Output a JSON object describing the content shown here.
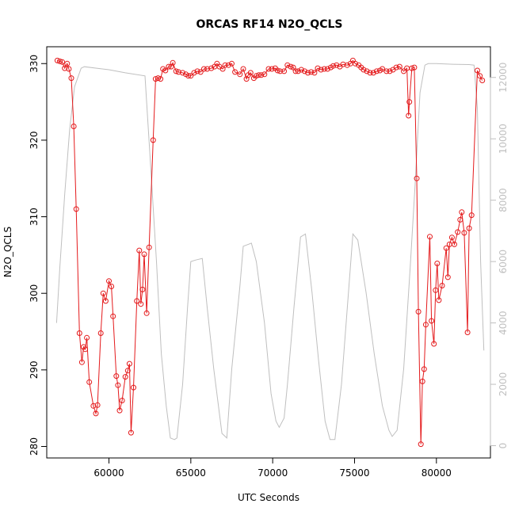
{
  "chart_data": {
    "type": "line",
    "title": "ORCAS RF14 N2O_QCLS",
    "xlabel": "UTC Seconds",
    "ylabel": "N2O_QCLS",
    "xlim": [
      56200,
      83300
    ],
    "ylim": [
      278.5,
      332.2
    ],
    "y2lim": [
      -400,
      13000
    ],
    "x_ticks": [
      60000,
      65000,
      70000,
      75000,
      80000
    ],
    "y_ticks": [
      280,
      290,
      300,
      310,
      320,
      330
    ],
    "y2_ticks": [
      0,
      2000,
      4000,
      6000,
      8000,
      10000,
      12000
    ],
    "colors": {
      "n2o": "#e41a1c",
      "altitude": "#bfbfbf"
    },
    "grid": false,
    "series": [
      {
        "key": "n2o",
        "style": "line+markers",
        "color": "#e41a1c",
        "points": [
          [
            56850,
            330.4
          ],
          [
            57000,
            330.3
          ],
          [
            57150,
            330.2
          ],
          [
            57300,
            329.4
          ],
          [
            57450,
            330.0
          ],
          [
            57550,
            329.3
          ],
          [
            57700,
            328.1
          ],
          [
            57850,
            321.8
          ],
          [
            58000,
            311.0
          ],
          [
            58200,
            294.8
          ],
          [
            58350,
            291.0
          ],
          [
            58450,
            293.0
          ],
          [
            58550,
            292.7
          ],
          [
            58650,
            294.2
          ],
          [
            58800,
            288.4
          ],
          [
            59050,
            285.3
          ],
          [
            59200,
            284.3
          ],
          [
            59300,
            285.4
          ],
          [
            59500,
            294.8
          ],
          [
            59650,
            300.0
          ],
          [
            59800,
            299.0
          ],
          [
            60000,
            301.6
          ],
          [
            60150,
            300.9
          ],
          [
            60250,
            297.0
          ],
          [
            60450,
            289.2
          ],
          [
            60550,
            288.0
          ],
          [
            60650,
            284.7
          ],
          [
            60800,
            286.0
          ],
          [
            61000,
            289.1
          ],
          [
            61150,
            289.9
          ],
          [
            61250,
            290.8
          ],
          [
            61350,
            281.8
          ],
          [
            61500,
            287.7
          ],
          [
            61700,
            299.0
          ],
          [
            61850,
            305.6
          ],
          [
            61950,
            298.6
          ],
          [
            62050,
            300.5
          ],
          [
            62150,
            305.1
          ],
          [
            62300,
            297.4
          ],
          [
            62450,
            306.0
          ],
          [
            62700,
            320.0
          ],
          [
            62850,
            328.0
          ],
          [
            63000,
            328.1
          ],
          [
            63150,
            328.0
          ],
          [
            63300,
            329.3
          ],
          [
            63450,
            329.1
          ],
          [
            63650,
            329.6
          ],
          [
            63800,
            329.6
          ],
          [
            63900,
            330.1
          ],
          [
            64100,
            329.0
          ],
          [
            64250,
            328.9
          ],
          [
            64500,
            328.8
          ],
          [
            64700,
            328.6
          ],
          [
            64850,
            328.4
          ],
          [
            65000,
            328.4
          ],
          [
            65200,
            328.8
          ],
          [
            65400,
            329.0
          ],
          [
            65600,
            328.9
          ],
          [
            65800,
            329.3
          ],
          [
            66000,
            329.3
          ],
          [
            66250,
            329.4
          ],
          [
            66450,
            329.6
          ],
          [
            66600,
            330.0
          ],
          [
            66750,
            329.6
          ],
          [
            66950,
            329.3
          ],
          [
            67100,
            329.8
          ],
          [
            67300,
            329.8
          ],
          [
            67500,
            330.0
          ],
          [
            67700,
            328.9
          ],
          [
            68000,
            328.6
          ],
          [
            68200,
            329.3
          ],
          [
            68400,
            328.0
          ],
          [
            68500,
            328.5
          ],
          [
            68650,
            328.8
          ],
          [
            68850,
            328.1
          ],
          [
            69000,
            328.4
          ],
          [
            69150,
            328.5
          ],
          [
            69300,
            328.5
          ],
          [
            69500,
            328.6
          ],
          [
            69750,
            329.3
          ],
          [
            69950,
            329.3
          ],
          [
            70150,
            329.4
          ],
          [
            70300,
            329.1
          ],
          [
            70450,
            329.0
          ],
          [
            70700,
            329.0
          ],
          [
            70900,
            329.8
          ],
          [
            71100,
            329.6
          ],
          [
            71250,
            329.5
          ],
          [
            71400,
            329.0
          ],
          [
            71550,
            329.0
          ],
          [
            71750,
            329.2
          ],
          [
            71950,
            329.0
          ],
          [
            72150,
            328.8
          ],
          [
            72350,
            328.9
          ],
          [
            72550,
            328.8
          ],
          [
            72750,
            329.4
          ],
          [
            72950,
            329.2
          ],
          [
            73150,
            329.3
          ],
          [
            73350,
            329.3
          ],
          [
            73550,
            329.5
          ],
          [
            73700,
            329.7
          ],
          [
            73900,
            329.8
          ],
          [
            74100,
            329.6
          ],
          [
            74300,
            329.9
          ],
          [
            74550,
            329.8
          ],
          [
            74750,
            330.0
          ],
          [
            74900,
            330.4
          ],
          [
            75050,
            330.0
          ],
          [
            75250,
            329.8
          ],
          [
            75400,
            329.5
          ],
          [
            75550,
            329.2
          ],
          [
            75750,
            329.0
          ],
          [
            75950,
            328.8
          ],
          [
            76150,
            328.8
          ],
          [
            76350,
            329.0
          ],
          [
            76550,
            329.1
          ],
          [
            76700,
            329.3
          ],
          [
            76950,
            329.0
          ],
          [
            77150,
            329.0
          ],
          [
            77350,
            329.2
          ],
          [
            77550,
            329.5
          ],
          [
            77750,
            329.6
          ],
          [
            78000,
            329.0
          ],
          [
            78200,
            329.4
          ],
          [
            78300,
            323.2
          ],
          [
            78350,
            325.0
          ],
          [
            78500,
            329.4
          ],
          [
            78650,
            329.5
          ],
          [
            78800,
            315.0
          ],
          [
            78900,
            297.6
          ],
          [
            79050,
            280.3
          ],
          [
            79150,
            288.5
          ],
          [
            79250,
            290.1
          ],
          [
            79350,
            295.9
          ],
          [
            79600,
            307.4
          ],
          [
            79700,
            296.4
          ],
          [
            79850,
            293.4
          ],
          [
            79950,
            300.4
          ],
          [
            80050,
            303.9
          ],
          [
            80150,
            299.1
          ],
          [
            80350,
            301.0
          ],
          [
            80600,
            305.9
          ],
          [
            80700,
            302.1
          ],
          [
            80800,
            306.4
          ],
          [
            80950,
            307.3
          ],
          [
            81100,
            306.4
          ],
          [
            81300,
            308.0
          ],
          [
            81450,
            309.6
          ],
          [
            81550,
            310.6
          ],
          [
            81700,
            307.9
          ],
          [
            81900,
            294.9
          ],
          [
            82000,
            308.5
          ],
          [
            82150,
            310.2
          ],
          [
            82500,
            329.1
          ],
          [
            82650,
            328.4
          ],
          [
            82800,
            327.8
          ]
        ]
      },
      {
        "key": "altitude",
        "style": "line",
        "color": "#bfbfbf",
        "points": [
          [
            56800,
            4000
          ],
          [
            57000,
            5800
          ],
          [
            57300,
            8200
          ],
          [
            57600,
            10300
          ],
          [
            57900,
            11700
          ],
          [
            58300,
            12300
          ],
          [
            58500,
            12350
          ],
          [
            60000,
            12250
          ],
          [
            61000,
            12150
          ],
          [
            62200,
            12050
          ],
          [
            62500,
            9500
          ],
          [
            62900,
            6000
          ],
          [
            63200,
            3000
          ],
          [
            63500,
            1300
          ],
          [
            63750,
            250
          ],
          [
            64000,
            200
          ],
          [
            64150,
            250
          ],
          [
            64500,
            2000
          ],
          [
            64800,
            4500
          ],
          [
            65000,
            6000
          ],
          [
            65300,
            6050
          ],
          [
            65700,
            6100
          ],
          [
            66000,
            4500
          ],
          [
            66400,
            2500
          ],
          [
            66900,
            400
          ],
          [
            67200,
            250
          ],
          [
            67500,
            2500
          ],
          [
            68000,
            5200
          ],
          [
            68200,
            6500
          ],
          [
            68700,
            6600
          ],
          [
            69000,
            6000
          ],
          [
            69500,
            4000
          ],
          [
            69900,
            1700
          ],
          [
            70200,
            800
          ],
          [
            70400,
            600
          ],
          [
            70700,
            900
          ],
          [
            70900,
            2000
          ],
          [
            71300,
            4500
          ],
          [
            71700,
            6800
          ],
          [
            72000,
            6900
          ],
          [
            72400,
            5000
          ],
          [
            72800,
            2800
          ],
          [
            73200,
            800
          ],
          [
            73500,
            200
          ],
          [
            73800,
            200
          ],
          [
            74200,
            2000
          ],
          [
            74700,
            5500
          ],
          [
            74900,
            6900
          ],
          [
            75200,
            6700
          ],
          [
            75700,
            5000
          ],
          [
            76200,
            3000
          ],
          [
            76700,
            1300
          ],
          [
            77100,
            500
          ],
          [
            77300,
            300
          ],
          [
            77600,
            500
          ],
          [
            78000,
            2500
          ],
          [
            78400,
            5800
          ],
          [
            78700,
            8500
          ],
          [
            79000,
            11500
          ],
          [
            79300,
            12400
          ],
          [
            79500,
            12450
          ],
          [
            80000,
            12450
          ],
          [
            81000,
            12430
          ],
          [
            82000,
            12420
          ],
          [
            82300,
            12400
          ],
          [
            82500,
            11000
          ],
          [
            82700,
            6000
          ],
          [
            82900,
            3100
          ]
        ]
      }
    ]
  }
}
